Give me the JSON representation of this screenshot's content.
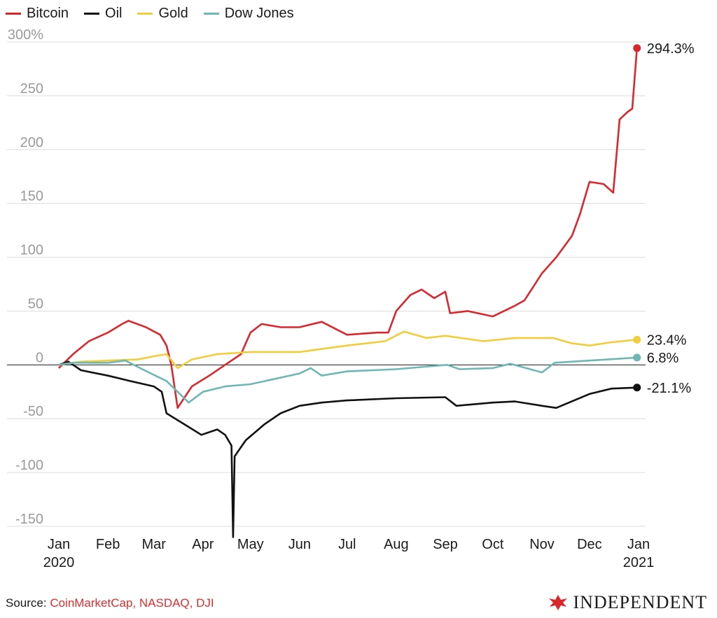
{
  "legend": [
    {
      "name": "Bitcoin",
      "color": "#d8282e"
    },
    {
      "name": "Oil",
      "color": "#111111"
    },
    {
      "name": "Gold",
      "color": "#f1cc3b"
    },
    {
      "name": "Dow Jones",
      "color": "#6fb7b4"
    }
  ],
  "source": {
    "prefix": "Source: ",
    "text": "CoinMarketCap, NASDAQ, DJI"
  },
  "brand": {
    "name": "INDEPENDENT",
    "logo": "eagle-logo"
  },
  "chart_data": {
    "type": "line",
    "title": "",
    "xlabel": "",
    "ylabel": "",
    "ylim": [
      -160,
      300
    ],
    "y_ticks": [
      "300%",
      "250",
      "200",
      "150",
      "100",
      "50",
      "0",
      "-50",
      "-100",
      "-150"
    ],
    "x_ticks": [
      "Jan\n2020",
      "Feb",
      "Mar",
      "Apr",
      "May",
      "Jun",
      "Jul",
      "Aug",
      "Sep",
      "Oct",
      "Nov",
      "Dec",
      "Jan\n2021"
    ],
    "grid": true,
    "zero_line": true,
    "series": [
      {
        "name": "Bitcoin",
        "color": "#d8282e",
        "end_label": "294.3%",
        "x": [
          "2020-01-01",
          "2020-01-10",
          "2020-01-20",
          "2020-02-01",
          "2020-02-10",
          "2020-02-14",
          "2020-02-25",
          "2020-03-05",
          "2020-03-09",
          "2020-03-12",
          "2020-03-16",
          "2020-03-25",
          "2020-04-05",
          "2020-04-15",
          "2020-04-25",
          "2020-05-01",
          "2020-05-08",
          "2020-05-20",
          "2020-06-01",
          "2020-06-15",
          "2020-07-01",
          "2020-07-20",
          "2020-07-27",
          "2020-08-01",
          "2020-08-10",
          "2020-08-17",
          "2020-08-25",
          "2020-09-01",
          "2020-09-04",
          "2020-09-15",
          "2020-10-01",
          "2020-10-15",
          "2020-10-21",
          "2020-11-01",
          "2020-11-10",
          "2020-11-20",
          "2020-11-25",
          "2020-12-01",
          "2020-12-10",
          "2020-12-16",
          "2020-12-20",
          "2020-12-25",
          "2020-12-28",
          "2020-12-31"
        ],
        "values": [
          -3,
          10,
          22,
          30,
          38,
          41,
          35,
          28,
          18,
          0,
          -40,
          -20,
          -10,
          0,
          10,
          30,
          38,
          35,
          35,
          40,
          28,
          30,
          30,
          50,
          65,
          70,
          62,
          68,
          48,
          50,
          45,
          55,
          60,
          85,
          100,
          120,
          140,
          170,
          168,
          160,
          228,
          235,
          238,
          294.3
        ]
      },
      {
        "name": "Oil",
        "color": "#111111",
        "end_label": "-21.1%",
        "x": [
          "2020-01-01",
          "2020-01-07",
          "2020-01-15",
          "2020-02-01",
          "2020-02-15",
          "2020-03-01",
          "2020-03-06",
          "2020-03-09",
          "2020-03-20",
          "2020-03-31",
          "2020-04-10",
          "2020-04-15",
          "2020-04-19",
          "2020-04-20",
          "2020-04-21",
          "2020-04-28",
          "2020-05-10",
          "2020-05-20",
          "2020-06-01",
          "2020-06-15",
          "2020-07-01",
          "2020-08-01",
          "2020-09-01",
          "2020-09-08",
          "2020-10-01",
          "2020-10-15",
          "2020-11-01",
          "2020-11-10",
          "2020-12-01",
          "2020-12-15",
          "2020-12-31"
        ],
        "values": [
          0,
          3,
          -5,
          -10,
          -15,
          -20,
          -25,
          -45,
          -55,
          -65,
          -60,
          -65,
          -75,
          -160,
          -85,
          -70,
          -55,
          -45,
          -38,
          -35,
          -33,
          -31,
          -30,
          -38,
          -35,
          -34,
          -38,
          -40,
          -27,
          -22,
          -21.1
        ]
      },
      {
        "name": "Gold",
        "color": "#f1cc3b",
        "end_label": "23.4%",
        "x": [
          "2020-01-01",
          "2020-01-15",
          "2020-02-01",
          "2020-02-20",
          "2020-03-01",
          "2020-03-09",
          "2020-03-16",
          "2020-03-25",
          "2020-04-10",
          "2020-05-01",
          "2020-06-01",
          "2020-07-01",
          "2020-07-25",
          "2020-08-06",
          "2020-08-20",
          "2020-09-01",
          "2020-09-25",
          "2020-10-15",
          "2020-11-08",
          "2020-11-20",
          "2020-12-01",
          "2020-12-15",
          "2020-12-31"
        ],
        "values": [
          0,
          3,
          4,
          5,
          8,
          10,
          -3,
          5,
          10,
          12,
          12,
          18,
          22,
          31,
          25,
          27,
          22,
          25,
          25,
          20,
          18,
          21,
          23.4
        ]
      },
      {
        "name": "Dow Jones",
        "color": "#6fb7b4",
        "end_label": "6.8%",
        "x": [
          "2020-01-01",
          "2020-01-10",
          "2020-02-01",
          "2020-02-12",
          "2020-02-24",
          "2020-03-09",
          "2020-03-16",
          "2020-03-23",
          "2020-04-01",
          "2020-04-15",
          "2020-05-01",
          "2020-06-01",
          "2020-06-08",
          "2020-06-15",
          "2020-07-01",
          "2020-08-01",
          "2020-09-02",
          "2020-09-10",
          "2020-10-01",
          "2020-10-12",
          "2020-11-01",
          "2020-11-09",
          "2020-12-01",
          "2020-12-31"
        ],
        "values": [
          0,
          2,
          2,
          4,
          -5,
          -15,
          -25,
          -35,
          -25,
          -20,
          -18,
          -8,
          -3,
          -10,
          -6,
          -4,
          0,
          -4,
          -3,
          1,
          -7,
          2,
          4,
          6.8
        ]
      }
    ]
  }
}
